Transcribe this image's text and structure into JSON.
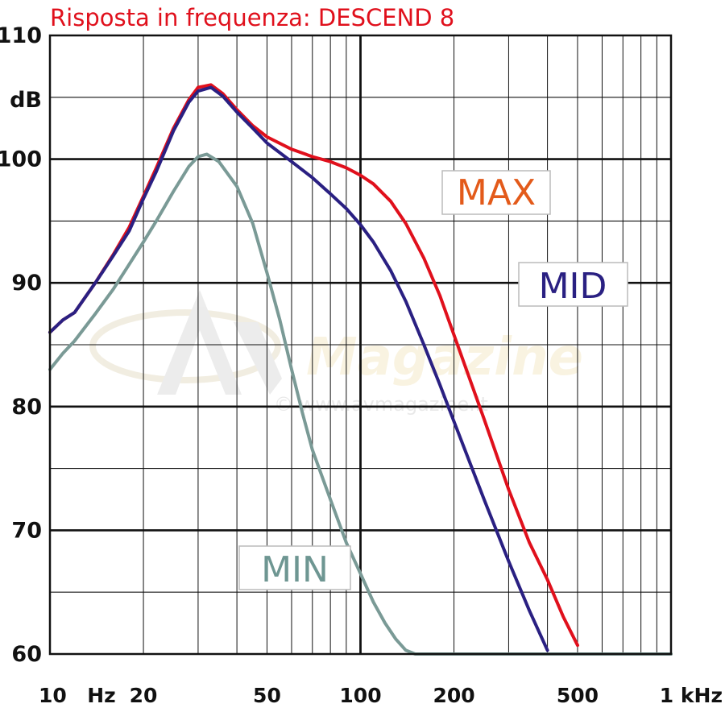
{
  "chart_data": {
    "type": "line",
    "title": "Risposta in frequenza: DESCEND 8",
    "x_scale": "log",
    "xlim": [
      10,
      1000
    ],
    "ylim": [
      60,
      110
    ],
    "y_unit_label": "dB",
    "y_ticks": [
      {
        "value": 110,
        "label": "110"
      },
      {
        "value": 100,
        "label": "100"
      },
      {
        "value": 90,
        "label": "90"
      },
      {
        "value": 80,
        "label": "80"
      },
      {
        "value": 70,
        "label": "70"
      },
      {
        "value": 60,
        "label": "60"
      }
    ],
    "x_ticks": [
      {
        "value": 10,
        "label": "10"
      },
      {
        "value": 20,
        "label": "20"
      },
      {
        "value": 50,
        "label": "50"
      },
      {
        "value": 100,
        "label": "100"
      },
      {
        "value": 200,
        "label": "200"
      },
      {
        "value": 500,
        "label": "500"
      },
      {
        "value": 1000,
        "label": "1 kHz"
      }
    ],
    "x_unit_label": "Hz",
    "watermark": {
      "logo": "AV Magazine",
      "text": "© www.avmagazine.it"
    },
    "series": [
      {
        "name": "MAX",
        "color": "#e0101c",
        "label_color": "#e35a1a",
        "points": [
          [
            10,
            86
          ],
          [
            11,
            87
          ],
          [
            12,
            87.6
          ],
          [
            14,
            90
          ],
          [
            16,
            92.3
          ],
          [
            18,
            94.5
          ],
          [
            20,
            97
          ],
          [
            22,
            99.3
          ],
          [
            25,
            102.5
          ],
          [
            28,
            104.8
          ],
          [
            30,
            105.8
          ],
          [
            33,
            106
          ],
          [
            36,
            105.3
          ],
          [
            40,
            104
          ],
          [
            45,
            102.7
          ],
          [
            50,
            101.8
          ],
          [
            60,
            100.8
          ],
          [
            70,
            100.2
          ],
          [
            80,
            99.8
          ],
          [
            90,
            99.3
          ],
          [
            100,
            98.7
          ],
          [
            110,
            98
          ],
          [
            125,
            96.6
          ],
          [
            140,
            94.8
          ],
          [
            160,
            92
          ],
          [
            180,
            89
          ],
          [
            200,
            85.8
          ],
          [
            250,
            79
          ],
          [
            300,
            73.3
          ],
          [
            350,
            69
          ],
          [
            400,
            66
          ],
          [
            450,
            63
          ],
          [
            500,
            60.7
          ]
        ]
      },
      {
        "name": "MID",
        "color": "#2a2082",
        "label_color": "#2a2082",
        "points": [
          [
            10,
            86
          ],
          [
            11,
            87
          ],
          [
            12,
            87.6
          ],
          [
            14,
            90
          ],
          [
            16,
            92.2
          ],
          [
            18,
            94.2
          ],
          [
            20,
            96.8
          ],
          [
            22,
            99
          ],
          [
            25,
            102.3
          ],
          [
            28,
            104.6
          ],
          [
            30,
            105.5
          ],
          [
            33,
            105.8
          ],
          [
            36,
            105.1
          ],
          [
            40,
            103.8
          ],
          [
            45,
            102.5
          ],
          [
            50,
            101.3
          ],
          [
            60,
            99.8
          ],
          [
            70,
            98.5
          ],
          [
            80,
            97.2
          ],
          [
            90,
            96
          ],
          [
            100,
            94.7
          ],
          [
            110,
            93.3
          ],
          [
            125,
            91
          ],
          [
            140,
            88.5
          ],
          [
            160,
            85
          ],
          [
            180,
            81.8
          ],
          [
            200,
            78.8
          ],
          [
            250,
            72.5
          ],
          [
            300,
            67.5
          ],
          [
            350,
            63.5
          ],
          [
            400,
            60.3
          ]
        ]
      },
      {
        "name": "MIN",
        "color": "#7a9a96",
        "label_color": "#6e9692",
        "points": [
          [
            10,
            83
          ],
          [
            11,
            84.3
          ],
          [
            12,
            85.3
          ],
          [
            14,
            87.5
          ],
          [
            16,
            89.5
          ],
          [
            18,
            91.5
          ],
          [
            20,
            93.3
          ],
          [
            22,
            95
          ],
          [
            25,
            97.4
          ],
          [
            28,
            99.4
          ],
          [
            30,
            100.2
          ],
          [
            32,
            100.4
          ],
          [
            35,
            99.8
          ],
          [
            40,
            97.8
          ],
          [
            45,
            94.8
          ],
          [
            50,
            90.8
          ],
          [
            55,
            87
          ],
          [
            60,
            83
          ],
          [
            65,
            79.5
          ],
          [
            70,
            76.5
          ],
          [
            80,
            72.5
          ],
          [
            90,
            69
          ],
          [
            100,
            66.5
          ],
          [
            110,
            64.2
          ],
          [
            120,
            62.5
          ],
          [
            130,
            61.2
          ],
          [
            140,
            60.3
          ],
          [
            150,
            60
          ],
          [
            1000,
            60
          ]
        ]
      }
    ]
  }
}
